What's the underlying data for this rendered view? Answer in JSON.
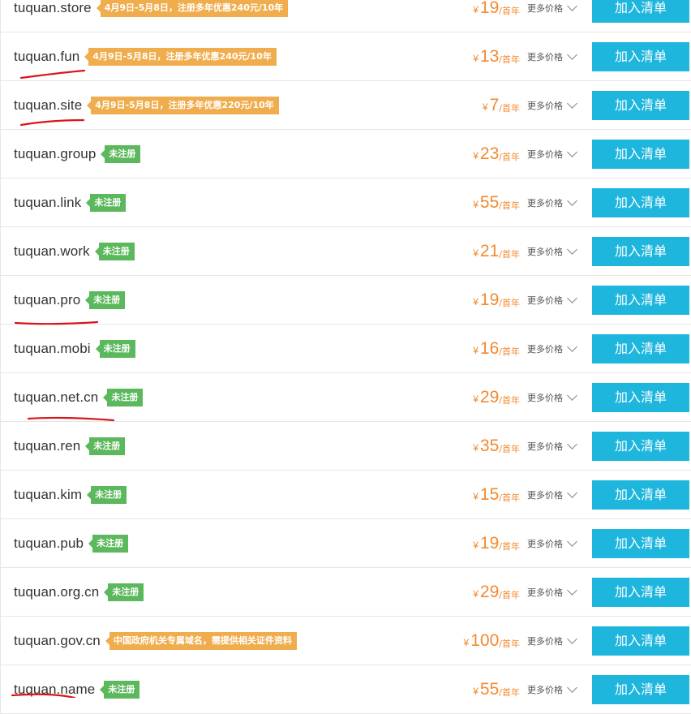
{
  "labels": {
    "per_year": "/首年",
    "more_prices": "更多价格",
    "add_to_list": "加入清单",
    "currency": "¥"
  },
  "colors": {
    "price": "#f28a30",
    "button": "#1fb6de",
    "badge_unregistered": "#5cb85c",
    "badge_promo": "#f0ad4e",
    "underline_mark": "#d9161c"
  },
  "rows": [
    {
      "domain": "tuquan.store",
      "badge": "4月9日-5月8日，注册多年优惠240元/10年",
      "badge_type": "promo",
      "price": "19"
    },
    {
      "domain": "tuquan.fun",
      "badge": "4月9日-5月8日，注册多年优惠240元/10年",
      "badge_type": "promo",
      "price": "13"
    },
    {
      "domain": "tuquan.site",
      "badge": "4月9日-5月8日，注册多年优惠220元/10年",
      "badge_type": "promo",
      "price": "7"
    },
    {
      "domain": "tuquan.group",
      "badge": "未注册",
      "badge_type": "unregistered",
      "price": "23"
    },
    {
      "domain": "tuquan.link",
      "badge": "未注册",
      "badge_type": "unregistered",
      "price": "55"
    },
    {
      "domain": "tuquan.work",
      "badge": "未注册",
      "badge_type": "unregistered",
      "price": "21"
    },
    {
      "domain": "tuquan.pro",
      "badge": "未注册",
      "badge_type": "unregistered",
      "price": "19"
    },
    {
      "domain": "tuquan.mobi",
      "badge": "未注册",
      "badge_type": "unregistered",
      "price": "16"
    },
    {
      "domain": "tuquan.net.cn",
      "badge": "未注册",
      "badge_type": "unregistered",
      "price": "29"
    },
    {
      "domain": "tuquan.ren",
      "badge": "未注册",
      "badge_type": "unregistered",
      "price": "35"
    },
    {
      "domain": "tuquan.kim",
      "badge": "未注册",
      "badge_type": "unregistered",
      "price": "15"
    },
    {
      "domain": "tuquan.pub",
      "badge": "未注册",
      "badge_type": "unregistered",
      "price": "19"
    },
    {
      "domain": "tuquan.org.cn",
      "badge": "未注册",
      "badge_type": "unregistered",
      "price": "29"
    },
    {
      "domain": "tuquan.gov.cn",
      "badge": "中国政府机关专属域名，需提供相关证件资料",
      "badge_type": "promo",
      "price": "100"
    },
    {
      "domain": "tuquan.name",
      "badge": "未注册",
      "badge_type": "unregistered",
      "price": "55"
    }
  ]
}
